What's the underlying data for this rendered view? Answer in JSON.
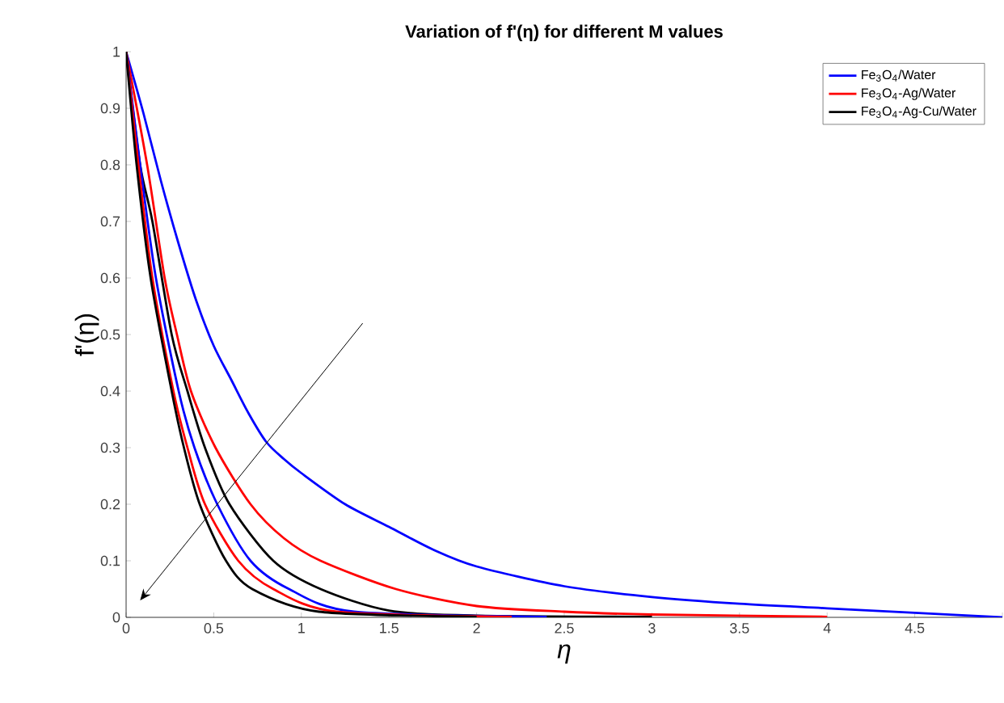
{
  "chart_data": {
    "type": "line",
    "title": "Variation of f'(η) for different M values",
    "xlabel": "η",
    "ylabel": "f'(η)",
    "xlim": [
      0,
      5
    ],
    "ylim": [
      0,
      1
    ],
    "xticks": [
      0,
      0.5,
      1,
      1.5,
      2,
      2.5,
      3,
      3.5,
      4,
      4.5,
      {
        "value": 5,
        "label": null
      }
    ],
    "yticks": [
      0,
      0.1,
      0.2,
      0.3,
      0.4,
      0.5,
      0.6,
      0.7,
      0.8,
      0.9,
      1
    ],
    "grid": false,
    "legend": "top right",
    "marker": "none",
    "line_style": "solid",
    "series": [
      {
        "name": "Fe$_{3}$O$_{4}$/Water",
        "color": "#0000ff",
        "x": [
          0,
          0.1,
          0.2,
          0.3,
          0.4,
          0.5,
          0.6,
          0.7,
          0.8,
          0.9,
          1,
          1.25,
          1.5,
          1.75,
          2,
          2.5,
          3,
          3.5,
          4,
          4.5,
          5
        ],
        "values": [
          1,
          0.89,
          0.77,
          0.66,
          0.56,
          0.48,
          0.42,
          0.36,
          0.31,
          0.28,
          0.255,
          0.2,
          0.16,
          0.12,
          0.09,
          0.055,
          0.036,
          0.024,
          0.016,
          0.008,
          0
        ]
      },
      {
        "name": "Fe$_{3}$O$_{4}$-Ag/Water",
        "color": "#ff0000",
        "x": [
          0,
          0.12,
          0.22,
          0.29,
          0.37,
          0.51,
          0.71,
          0.9,
          1.11,
          1.54,
          2,
          2.5,
          3,
          4
        ],
        "values": [
          1,
          0.8,
          0.6,
          0.5,
          0.4,
          0.3,
          0.2,
          0.14,
          0.1,
          0.05,
          0.02,
          0.01,
          0.005,
          0.001
        ]
      },
      {
        "name": "Fe$_{3}$O$_{4}$-Ag-Cu/Water",
        "color": "#000000",
        "x": [
          0,
          0.08,
          0.15,
          0.26,
          0.35,
          0.45,
          0.59,
          0.84,
          1.11,
          1.5,
          2,
          3
        ],
        "values": [
          1,
          0.8,
          0.7,
          0.5,
          0.4,
          0.3,
          0.2,
          0.1,
          0.05,
          0.012,
          0.003,
          0.001
        ]
      },
      {
        "color": "#0000ff",
        "x": [
          0,
          0.08,
          0.17,
          0.3,
          0.39,
          0.52,
          0.71,
          0.93,
          1.3,
          2.4
        ],
        "values": [
          1,
          0.8,
          0.6,
          0.4,
          0.3,
          0.2,
          0.1,
          0.05,
          0.01,
          0.001
        ]
      },
      {
        "color": "#ff0000",
        "x": [
          0,
          0.07,
          0.15,
          0.27,
          0.35,
          0.45,
          0.64,
          0.84,
          1.2,
          2.2
        ],
        "values": [
          1,
          0.8,
          0.6,
          0.4,
          0.3,
          0.2,
          0.1,
          0.05,
          0.01,
          0.001
        ]
      },
      {
        "color": "#000000",
        "x": [
          0,
          0.06,
          0.14,
          0.26,
          0.33,
          0.42,
          0.57,
          0.72,
          1.1,
          2
        ],
        "values": [
          1,
          0.8,
          0.6,
          0.4,
          0.3,
          0.2,
          0.1,
          0.05,
          0.01,
          0.001
        ]
      }
    ]
  }
}
